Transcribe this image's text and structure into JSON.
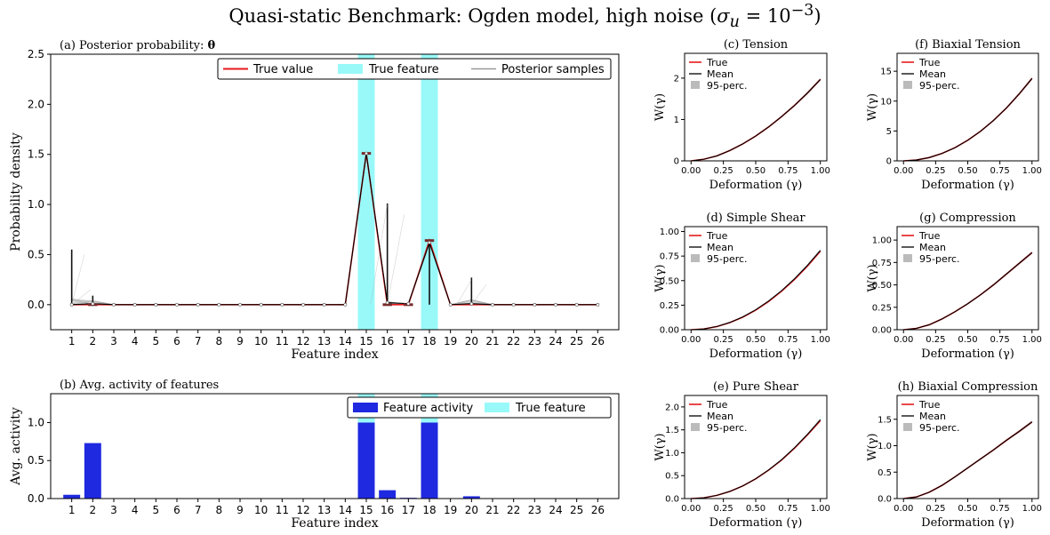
{
  "figure": {
    "title": "Quasi-static Benchmark: Ogden model, high noise (σu = 10−3)",
    "title_main": "Quasi-static Benchmark: Ogden model, high noise (",
    "title_sigma": "σ",
    "title_sub": "u",
    "title_eq": " = 10",
    "title_exp": "−3",
    "title_close": ")"
  },
  "colors": {
    "true_value": "#e41a1c",
    "true_feature": "#99f9f9",
    "posterior_samples": "#999999",
    "feature_activity": "#1f29e0",
    "mean": "#000000",
    "percentile": "#bbbbbb"
  },
  "chart_data": [
    {
      "id": "a",
      "type": "line",
      "title": "(a) Posterior  probability: θ",
      "title_prefix": "(a) Posterior  probability: ",
      "title_symbol": "θ",
      "xlabel": "Feature index",
      "ylabel": "Probability density",
      "categories": [
        "1",
        "2",
        "3",
        "4",
        "5",
        "6",
        "7",
        "8",
        "9",
        "10",
        "11",
        "12",
        "13",
        "14",
        "15",
        "16",
        "17",
        "18",
        "19",
        "20",
        "21",
        "22",
        "23",
        "24",
        "25",
        "26"
      ],
      "ylim": [
        -0.25,
        2.5
      ],
      "yticks": [
        "0.0",
        "0.5",
        "1.0",
        "1.5",
        "2.0",
        "2.5"
      ],
      "legend": [
        "True value",
        "True feature",
        "Posterior samples"
      ],
      "legend_position": "top-right",
      "true_feature_indices": [
        15,
        18
      ],
      "series": [
        {
          "name": "True value",
          "x": [
            1,
            2,
            3,
            4,
            5,
            6,
            7,
            8,
            9,
            10,
            11,
            12,
            13,
            14,
            15,
            16,
            17,
            18,
            19,
            20,
            21,
            22,
            23,
            24,
            25,
            26
          ],
          "values": [
            0,
            0,
            0,
            0,
            0,
            0,
            0,
            0,
            0,
            0,
            0,
            0,
            0,
            0,
            1.51,
            0,
            0,
            0.64,
            0,
            0,
            0,
            0,
            0,
            0,
            0,
            0
          ]
        },
        {
          "name": "Mean",
          "x": [
            1,
            2,
            3,
            4,
            5,
            6,
            7,
            8,
            9,
            10,
            11,
            12,
            13,
            14,
            15,
            16,
            17,
            18,
            19,
            20,
            21,
            22,
            23,
            24,
            25,
            26
          ],
          "values": [
            0,
            0.01,
            0,
            0,
            0,
            0,
            0,
            0,
            0,
            0,
            0,
            0,
            0,
            0,
            1.51,
            0.02,
            0.01,
            0.62,
            0,
            0.01,
            0,
            0,
            0,
            0,
            0,
            0
          ]
        }
      ],
      "spikes": [
        {
          "x": 1,
          "top": 0.55
        },
        {
          "x": 2,
          "top": 0.09
        },
        {
          "x": 16,
          "top": 1.01
        },
        {
          "x": 18,
          "top": 0.64
        },
        {
          "x": 20,
          "top": 0.27
        }
      ]
    },
    {
      "id": "b",
      "type": "bar",
      "title": "(b) Avg. activity of features",
      "xlabel": "Feature index",
      "ylabel": "Avg. activity",
      "categories": [
        "1",
        "2",
        "3",
        "4",
        "5",
        "6",
        "7",
        "8",
        "9",
        "10",
        "11",
        "12",
        "13",
        "14",
        "15",
        "16",
        "17",
        "18",
        "19",
        "20",
        "21",
        "22",
        "23",
        "24",
        "25",
        "26"
      ],
      "values": [
        0.05,
        0.73,
        0,
        0,
        0,
        0,
        0,
        0,
        0,
        0,
        0,
        0,
        0,
        0,
        1.0,
        0.11,
        0.01,
        1.0,
        0,
        0.03,
        0,
        0,
        0,
        0,
        0,
        0
      ],
      "ylim": [
        0,
        1.38
      ],
      "yticks": [
        "0.0",
        "0.5",
        "1.0"
      ],
      "legend": [
        "Feature activity",
        "True feature"
      ],
      "legend_position": "top-right",
      "true_feature_indices": [
        15,
        18
      ]
    },
    {
      "id": "c",
      "type": "line",
      "title": "(c) Tension",
      "xlabel": "Deformation (γ)",
      "ylabel": "W(γ)",
      "xlim": [
        -0.05,
        1.05
      ],
      "xticks": [
        "0.00",
        "0.25",
        "0.50",
        "0.75",
        "1.00"
      ],
      "ylim": [
        0,
        2.6
      ],
      "yticks": [
        "0",
        "1",
        "2"
      ],
      "legend": [
        "True",
        "Mean",
        "95-perc."
      ],
      "legend_position": "top-left",
      "x": [
        0,
        0.1,
        0.2,
        0.3,
        0.4,
        0.5,
        0.6,
        0.7,
        0.8,
        0.9,
        1.0
      ],
      "series": [
        {
          "name": "True",
          "values": [
            0,
            0.04,
            0.12,
            0.25,
            0.41,
            0.6,
            0.82,
            1.07,
            1.34,
            1.64,
            1.97
          ]
        },
        {
          "name": "Mean",
          "values": [
            0,
            0.04,
            0.12,
            0.25,
            0.41,
            0.6,
            0.82,
            1.07,
            1.34,
            1.64,
            1.97
          ]
        }
      ]
    },
    {
      "id": "f",
      "type": "line",
      "title": "(f) Biaxial Tension",
      "xlabel": "Deformation (γ)",
      "ylabel": "W(γ)",
      "xlim": [
        -0.05,
        1.05
      ],
      "xticks": [
        "0.00",
        "0.25",
        "0.50",
        "0.75",
        "1.00"
      ],
      "ylim": [
        0,
        18
      ],
      "yticks": [
        "0",
        "5",
        "10",
        "15"
      ],
      "legend": [
        "True",
        "Mean",
        "95-perc."
      ],
      "legend_position": "top-left",
      "x": [
        0,
        0.1,
        0.2,
        0.3,
        0.4,
        0.5,
        0.6,
        0.7,
        0.8,
        0.9,
        1.0
      ],
      "series": [
        {
          "name": "True",
          "values": [
            0,
            0.14,
            0.55,
            1.24,
            2.2,
            3.45,
            4.96,
            6.76,
            8.83,
            11.2,
            13.8
          ]
        },
        {
          "name": "Mean",
          "values": [
            0,
            0.14,
            0.55,
            1.24,
            2.2,
            3.45,
            4.96,
            6.76,
            8.83,
            11.2,
            13.8
          ]
        }
      ]
    },
    {
      "id": "d",
      "type": "line",
      "title": "(d) Simple Shear",
      "xlabel": "Deformation (γ)",
      "ylabel": "W(γ)",
      "xlim": [
        -0.05,
        1.05
      ],
      "xticks": [
        "0.00",
        "0.25",
        "0.50",
        "0.75",
        "1.00"
      ],
      "ylim": [
        0,
        1.05
      ],
      "yticks": [
        "0.00",
        "0.25",
        "0.50",
        "0.75",
        "1.00"
      ],
      "legend": [
        "True",
        "Mean",
        "95-perc."
      ],
      "legend_position": "top-left",
      "x": [
        0,
        0.1,
        0.2,
        0.3,
        0.4,
        0.5,
        0.6,
        0.7,
        0.8,
        0.9,
        1.0
      ],
      "series": [
        {
          "name": "True",
          "values": [
            0,
            0.008,
            0.032,
            0.072,
            0.128,
            0.2,
            0.288,
            0.392,
            0.512,
            0.648,
            0.8
          ]
        },
        {
          "name": "Mean",
          "values": [
            0,
            0.008,
            0.033,
            0.074,
            0.13,
            0.203,
            0.292,
            0.397,
            0.518,
            0.655,
            0.807
          ]
        }
      ]
    },
    {
      "id": "g",
      "type": "line",
      "title": "(g) Compression",
      "xlabel": "Deformation (γ)",
      "ylabel": "W(γ)",
      "xlim": [
        -0.05,
        1.05
      ],
      "xticks": [
        "0.00",
        "0.25",
        "0.50",
        "0.75",
        "1.00"
      ],
      "ylim": [
        0,
        1.15
      ],
      "yticks": [
        "0.00",
        "0.25",
        "0.50",
        "0.75",
        "1.00"
      ],
      "legend": [
        "True",
        "Mean",
        "95-perc."
      ],
      "legend_position": "top-left",
      "x": [
        0,
        0.1,
        0.2,
        0.3,
        0.4,
        0.5,
        0.6,
        0.7,
        0.8,
        0.9,
        1.0
      ],
      "series": [
        {
          "name": "True",
          "values": [
            0,
            0.015,
            0.055,
            0.12,
            0.2,
            0.29,
            0.39,
            0.5,
            0.62,
            0.74,
            0.86
          ]
        },
        {
          "name": "Mean",
          "values": [
            0,
            0.015,
            0.055,
            0.12,
            0.2,
            0.29,
            0.39,
            0.5,
            0.62,
            0.74,
            0.86
          ]
        }
      ]
    },
    {
      "id": "e",
      "type": "line",
      "title": "(e) Pure Shear",
      "xlabel": "Deformation (γ)",
      "ylabel": "W(γ)",
      "xlim": [
        -0.05,
        1.05
      ],
      "xticks": [
        "0.00",
        "0.25",
        "0.50",
        "0.75",
        "1.00"
      ],
      "ylim": [
        0,
        2.25
      ],
      "yticks": [
        "0.0",
        "0.5",
        "1.0",
        "1.5",
        "2.0"
      ],
      "legend": [
        "True",
        "Mean",
        "95-perc."
      ],
      "legend_position": "top-left",
      "x": [
        0,
        0.1,
        0.2,
        0.3,
        0.4,
        0.5,
        0.6,
        0.7,
        0.8,
        0.9,
        1.0
      ],
      "series": [
        {
          "name": "True",
          "values": [
            0,
            0.017,
            0.07,
            0.155,
            0.275,
            0.43,
            0.62,
            0.84,
            1.1,
            1.39,
            1.7
          ]
        },
        {
          "name": "Mean",
          "values": [
            0,
            0.017,
            0.07,
            0.156,
            0.277,
            0.433,
            0.624,
            0.847,
            1.108,
            1.4,
            1.72
          ]
        }
      ]
    },
    {
      "id": "h",
      "type": "line",
      "title": "(h) Biaxial Compression",
      "xlabel": "Deformation (γ)",
      "ylabel": "W(γ)",
      "xlim": [
        -0.05,
        1.05
      ],
      "xticks": [
        "0.00",
        "0.25",
        "0.50",
        "0.75",
        "1.00"
      ],
      "ylim": [
        0,
        1.95
      ],
      "yticks": [
        "0.0",
        "0.5",
        "1.0",
        "1.5"
      ],
      "legend": [
        "True",
        "Mean",
        "95-perc."
      ],
      "legend_position": "top-left",
      "x": [
        0,
        0.1,
        0.2,
        0.3,
        0.4,
        0.5,
        0.6,
        0.7,
        0.8,
        0.9,
        1.0
      ],
      "series": [
        {
          "name": "True",
          "values": [
            0,
            0.03,
            0.12,
            0.25,
            0.41,
            0.58,
            0.75,
            0.92,
            1.1,
            1.27,
            1.45
          ]
        },
        {
          "name": "Mean",
          "values": [
            0,
            0.03,
            0.12,
            0.25,
            0.41,
            0.58,
            0.75,
            0.92,
            1.1,
            1.27,
            1.45
          ]
        }
      ]
    }
  ]
}
